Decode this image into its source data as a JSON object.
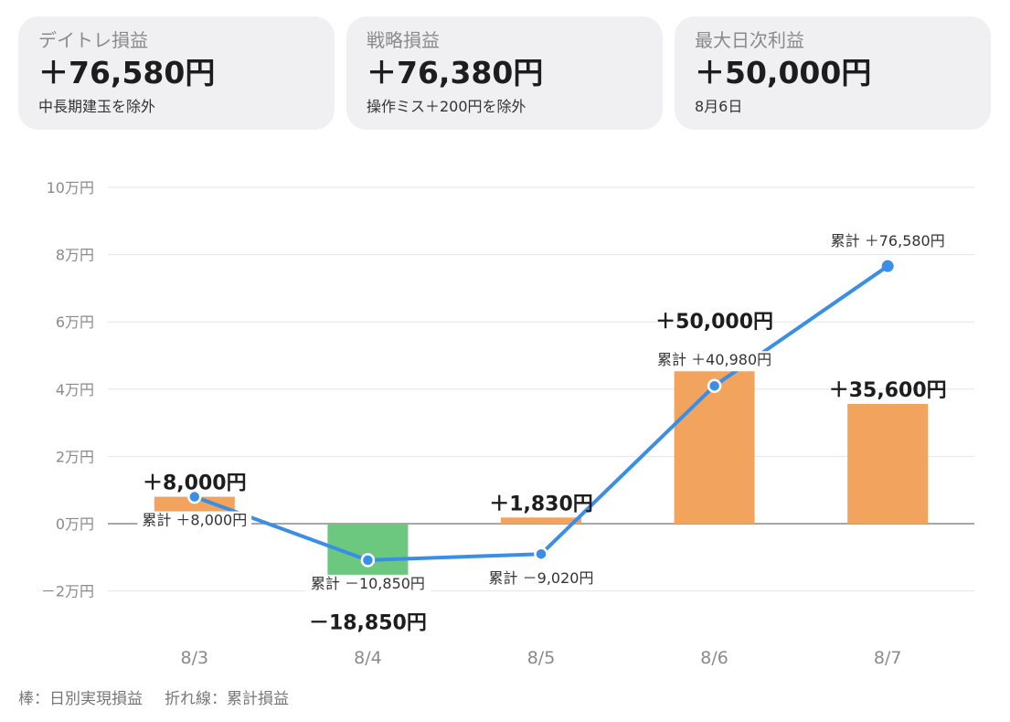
{
  "cards": [
    {
      "label": "デイトレ損益",
      "value": "＋76,580円",
      "note": "中長期建玉を除外"
    },
    {
      "label": "戦略損益",
      "value": "＋76,380円",
      "note": "操作ミス＋200円を除外"
    },
    {
      "label": "最大日次利益",
      "value": "＋50,000円",
      "note": "8月6日"
    }
  ],
  "caption": {
    "bars": "棒：日別実現損益",
    "line": "折れ線：累計損益"
  },
  "chart_data": {
    "type": "bar",
    "categories": [
      "8/3",
      "8/4",
      "8/5",
      "8/6",
      "8/7"
    ],
    "series": [
      {
        "name": "日別実現損益",
        "type": "bar",
        "values": [
          8000,
          -18850,
          1830,
          50000,
          35600
        ],
        "labels": [
          "＋8,000円",
          "－18,850円",
          "＋1,830円",
          "＋50,000円",
          "＋35,600円"
        ]
      },
      {
        "name": "累計損益",
        "type": "line",
        "values": [
          8000,
          -10850,
          -9020,
          40980,
          76580
        ],
        "labels": [
          "累計 ＋8,000円",
          "累計 －10,850円",
          "累計 －9,020円",
          "累計 ＋40,980円",
          "累計 ＋76,580円"
        ]
      }
    ],
    "y_ticks": [
      -20000,
      0,
      20000,
      40000,
      60000,
      80000,
      100000
    ],
    "y_tick_labels": [
      "－2万円",
      "0万円",
      "2万円",
      "4万円",
      "6万円",
      "8万円",
      "10万円"
    ],
    "ylim": [
      -30000,
      100000
    ],
    "colors": {
      "positive": "#f2a35e",
      "negative": "#6cc77f",
      "line": "#3a8ee6"
    },
    "grid": true
  }
}
